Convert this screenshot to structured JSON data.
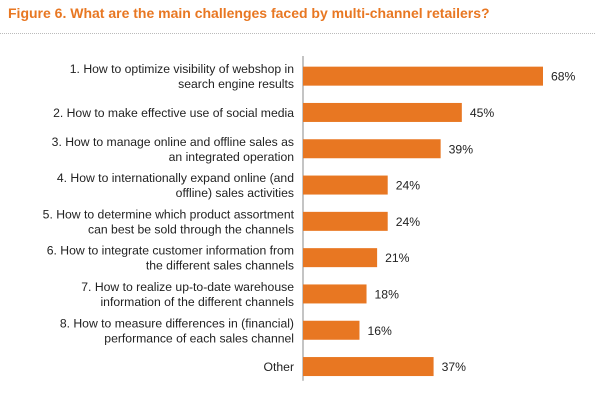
{
  "chart_data": {
    "type": "bar",
    "orientation": "horizontal",
    "title": "Figure 6. What are the main challenges faced by multi-channel retailers?",
    "categories": [
      [
        "1. How to optimize visibility of webshop in",
        "search engine results"
      ],
      [
        "2. How to make effective use of social media"
      ],
      [
        "3. How to manage online and offline sales as",
        "an integrated operation"
      ],
      [
        "4. How to internationally expand online (and",
        "offline) sales activities"
      ],
      [
        "5. How to determine which product assortment",
        "can best be sold through the channels"
      ],
      [
        "6. How to integrate customer information from",
        "the different sales channels"
      ],
      [
        "7. How to realize up-to-date warehouse",
        "information of the different channels"
      ],
      [
        "8. How to measure differences in (financial)",
        "performance of each sales channel"
      ],
      [
        "Other"
      ]
    ],
    "values": [
      68,
      45,
      39,
      24,
      24,
      21,
      18,
      16,
      37
    ],
    "value_labels": [
      "68%",
      "45%",
      "39%",
      "24%",
      "24%",
      "21%",
      "18%",
      "16%",
      "37%"
    ],
    "unit": "%",
    "bar_color": "#e87722",
    "axis_color": "#888888",
    "grid": false,
    "legend": "none"
  }
}
